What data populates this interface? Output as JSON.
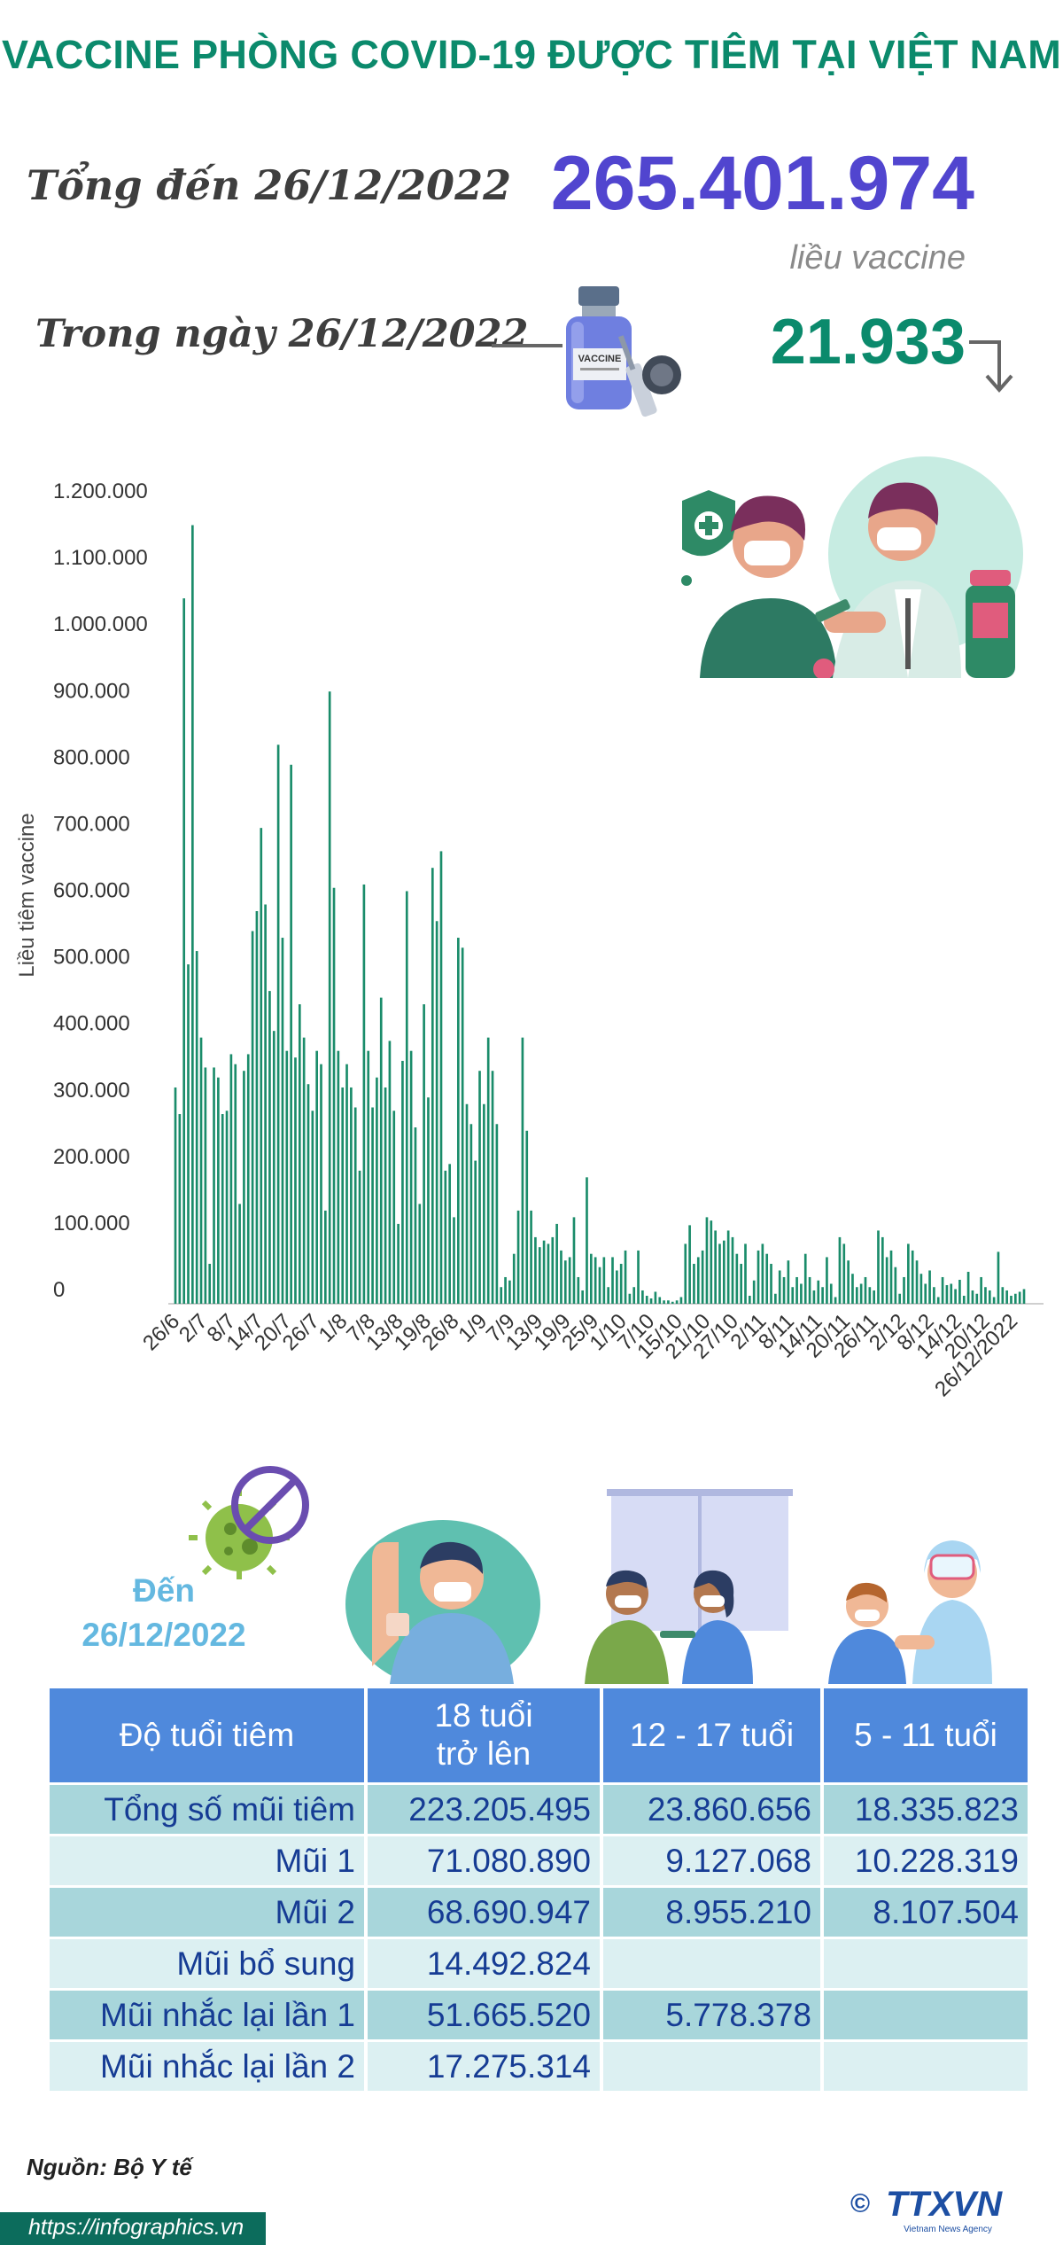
{
  "title": "VACCINE PHÒNG COVID-19 ĐƯỢC TIÊM TẠI VIỆT NAM",
  "summary": {
    "total_label": "Tổng đến 26/12/2022",
    "total_value": "265.401.974",
    "total_unit": "liều vaccine",
    "day_label": "Trong ngày 26/12/2022",
    "day_value": "21.933",
    "day_trend_icon": "arrow-down-icon",
    "vial_label": "VACCINE"
  },
  "chart_data": {
    "type": "bar",
    "ylabel": "Liều tiêm vaccine",
    "ylim": [
      0,
      1200000
    ],
    "y_ticks": [
      "0",
      "100.000",
      "200.000",
      "300.000",
      "400.000",
      "500.000",
      "600.000",
      "700.000",
      "800.000",
      "900.000",
      "1.000.000",
      "1.100.000",
      "1.200.000"
    ],
    "x_tick_labels": [
      "26/6",
      "2/7",
      "8/7",
      "14/7",
      "20/7",
      "26/7",
      "1/8",
      "7/8",
      "13/8",
      "19/8",
      "26/8",
      "1/9",
      "7/9",
      "13/9",
      "19/9",
      "25/9",
      "1/10",
      "7/10",
      "15/10",
      "21/10",
      "27/10",
      "2/11",
      "8/11",
      "14/11",
      "20/11",
      "26/11",
      "2/12",
      "8/12",
      "14/12",
      "20/12",
      "26/12/2022"
    ],
    "x_start": "26/6/2022",
    "x_end": "26/12/2022",
    "values": [
      325000,
      285000,
      1060000,
      510000,
      1170000,
      530000,
      400000,
      355000,
      60000,
      355000,
      340000,
      285000,
      290000,
      375000,
      360000,
      150000,
      350000,
      375000,
      560000,
      590000,
      715000,
      600000,
      470000,
      410000,
      840000,
      550000,
      380000,
      810000,
      370000,
      450000,
      400000,
      330000,
      290000,
      380000,
      360000,
      140000,
      920000,
      625000,
      380000,
      325000,
      360000,
      325000,
      295000,
      200000,
      630000,
      380000,
      295000,
      340000,
      460000,
      325000,
      395000,
      290000,
      120000,
      365000,
      620000,
      380000,
      265000,
      150000,
      450000,
      310000,
      655000,
      575000,
      680000,
      200000,
      210000,
      130000,
      550000,
      535000,
      300000,
      270000,
      215000,
      350000,
      300000,
      400000,
      350000,
      270000,
      25000,
      40000,
      35000,
      75000,
      140000,
      400000,
      260000,
      140000,
      100000,
      85000,
      95000,
      90000,
      100000,
      120000,
      80000,
      65000,
      70000,
      130000,
      40000,
      20000,
      190000,
      75000,
      70000,
      55000,
      70000,
      25000,
      70000,
      50000,
      60000,
      80000,
      15000,
      25000,
      80000,
      20000,
      12000,
      8000,
      18000,
      10000,
      5000,
      5000,
      3000,
      5000,
      10000,
      90000,
      118000,
      60000,
      70000,
      80000,
      130000,
      125000,
      110000,
      90000,
      95000,
      110000,
      100000,
      75000,
      60000,
      90000,
      12000,
      35000,
      80000,
      90000,
      75000,
      60000,
      15000,
      50000,
      40000,
      65000,
      25000,
      40000,
      30000,
      75000,
      40000,
      20000,
      35000,
      25000,
      70000,
      30000,
      10000,
      100000,
      90000,
      65000,
      45000,
      25000,
      30000,
      40000,
      25000,
      20000,
      110000,
      100000,
      70000,
      80000,
      55000,
      15000,
      40000,
      90000,
      80000,
      65000,
      45000,
      30000,
      50000,
      25000,
      10000,
      40000,
      28000,
      30000,
      22000,
      36000,
      12000,
      48000,
      20000,
      15000,
      40000,
      25000,
      20000,
      10000,
      78000,
      25000,
      20000,
      12000,
      15000,
      18000,
      22000
    ]
  },
  "age_table": {
    "date_label_line1": "Đến",
    "date_label_line2": "26/12/2022",
    "headers": {
      "c0": "Độ tuổi tiêm",
      "c1_line1": "18 tuổi",
      "c1_line2": "trở lên",
      "c2": "12 - 17 tuổi",
      "c3": "5 - 11 tuổi"
    },
    "rows": [
      {
        "label": "Tổng số mũi tiêm",
        "a18": "223.205.495",
        "a12": "23.860.656",
        "a5": "18.335.823"
      },
      {
        "label": "Mũi 1",
        "a18": "71.080.890",
        "a12": "9.127.068",
        "a5": "10.228.319"
      },
      {
        "label": "Mũi 2",
        "a18": "68.690.947",
        "a12": "8.955.210",
        "a5": "8.107.504"
      },
      {
        "label": "Mũi bổ sung",
        "a18": "14.492.824",
        "a12": "",
        "a5": ""
      },
      {
        "label": "Mũi nhắc lại lần 1",
        "a18": "51.665.520",
        "a12": "5.778.378",
        "a5": ""
      },
      {
        "label": "Mũi nhắc lại lần 2",
        "a18": "17.275.314",
        "a12": "",
        "a5": ""
      }
    ]
  },
  "footer": {
    "source": "Nguồn: Bộ Y tế",
    "url": "https://infographics.vn",
    "copyright": "©",
    "logo_text": "TTXVN",
    "logo_subtext": "Vietnam News Agency"
  },
  "colors": {
    "title": "#0b8a6c",
    "total_value": "#5145cf",
    "bar": "#1a8c6a",
    "table_header": "#4f89dc",
    "row_dark": "#a8d6db",
    "row_light": "#dcf0f2",
    "table_text": "#163c94"
  }
}
